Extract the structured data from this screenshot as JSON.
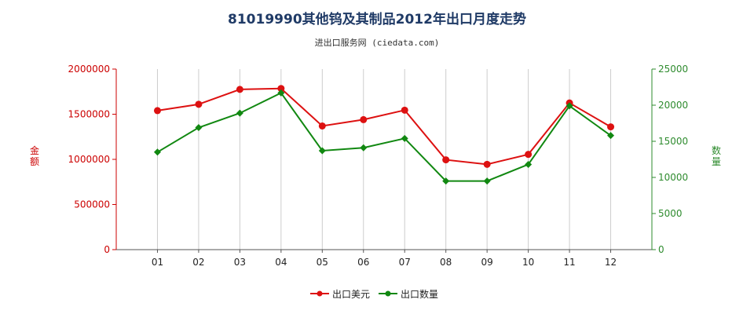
{
  "chart_data": {
    "type": "line",
    "title": "81019990其他钨及其制品2012年出口月度走势",
    "subtitle": "进出口服务网 (ciedata.com)",
    "categories": [
      "01",
      "02",
      "03",
      "04",
      "05",
      "06",
      "07",
      "08",
      "09",
      "10",
      "11",
      "12"
    ],
    "y_left": {
      "label": "金额",
      "ticks": [
        "0",
        "500000",
        "1000000",
        "1500000",
        "2000000"
      ],
      "range": [
        0,
        2000000
      ],
      "color": "#cc0000"
    },
    "y_right": {
      "label": "数量",
      "ticks": [
        "0",
        "5000",
        "10000",
        "15000",
        "20000",
        "25000"
      ],
      "range": [
        0,
        25000
      ],
      "color": "#2e8b2e"
    },
    "series": [
      {
        "name": "出口美元",
        "axis": "left",
        "color": "#dd1111",
        "values": [
          1540000,
          1610000,
          1775000,
          1785000,
          1370000,
          1440000,
          1545000,
          995000,
          945000,
          1055000,
          1625000,
          1360000
        ]
      },
      {
        "name": "出口数量",
        "axis": "right",
        "color": "#118811",
        "values": [
          13500,
          16900,
          18900,
          21700,
          13700,
          14100,
          15400,
          9500,
          9500,
          11800,
          19900,
          15800
        ]
      }
    ],
    "grid": "vertical",
    "legend_position": "bottom-center"
  }
}
